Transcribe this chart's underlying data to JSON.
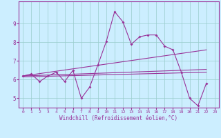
{
  "xlabel": "Windchill (Refroidissement éolien,°C)",
  "background_color": "#cceeff",
  "line_color": "#993399",
  "grid_color": "#99cccc",
  "xlim": [
    -0.5,
    23.5
  ],
  "ylim": [
    4.5,
    10.2
  ],
  "x_ticks": [
    0,
    1,
    2,
    3,
    4,
    5,
    6,
    7,
    8,
    9,
    10,
    11,
    12,
    13,
    14,
    15,
    16,
    17,
    18,
    19,
    20,
    21,
    22,
    23
  ],
  "y_ticks": [
    5,
    6,
    7,
    8,
    9
  ],
  "series0_x": [
    0,
    1,
    2,
    3,
    4,
    5,
    6,
    7,
    8,
    9,
    10,
    11,
    12,
    13,
    14,
    15,
    16,
    17,
    18,
    19,
    20,
    21,
    22
  ],
  "series0_y": [
    6.2,
    6.3,
    5.9,
    6.2,
    6.4,
    5.9,
    6.5,
    5.0,
    5.6,
    6.8,
    8.05,
    9.65,
    9.1,
    7.9,
    8.3,
    8.4,
    8.4,
    7.8,
    7.6,
    6.4,
    5.0,
    4.6,
    5.8
  ],
  "series1_x": [
    0,
    22
  ],
  "series1_y": [
    6.2,
    7.6
  ],
  "series2_x": [
    0,
    22
  ],
  "series2_y": [
    6.15,
    6.4
  ],
  "series3_x": [
    0,
    22
  ],
  "series3_y": [
    6.2,
    6.55
  ]
}
